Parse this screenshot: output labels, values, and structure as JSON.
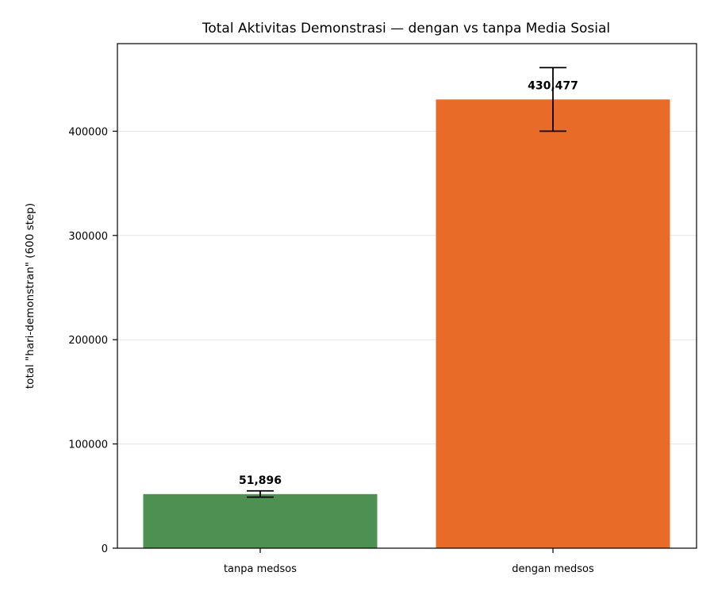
{
  "chart_data": {
    "type": "bar",
    "title": "Total Aktivitas Demonstrasi — dengan vs tanpa Media Sosial",
    "xlabel": "",
    "ylabel": "total \"hari-demonstran\" (600 step)",
    "categories": [
      "tanpa medsos",
      "dengan medsos"
    ],
    "values": [
      51896,
      430477
    ],
    "error_low": [
      49000,
      400000
    ],
    "error_high": [
      55000,
      461000
    ],
    "data_labels": [
      "51,896",
      "430,477"
    ],
    "colors": [
      "#4e8f52",
      "#e86b27"
    ],
    "ylim": [
      0,
      484000
    ],
    "yticks": [
      0,
      100000,
      200000,
      300000,
      400000
    ],
    "ytick_labels": [
      "0",
      "100000",
      "200000",
      "300000",
      "400000"
    ],
    "grid": "y"
  }
}
